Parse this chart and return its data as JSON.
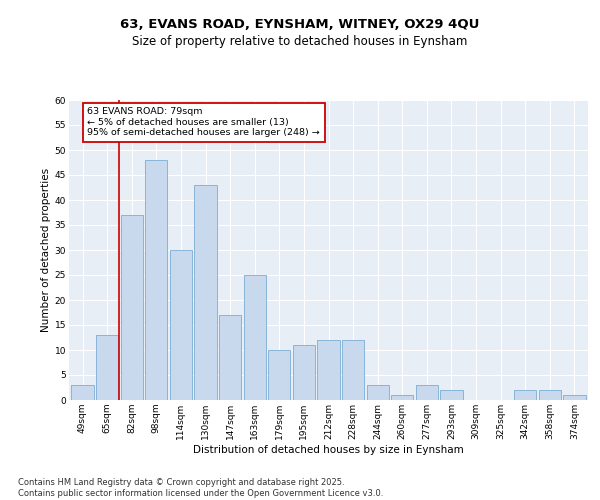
{
  "title1": "63, EVANS ROAD, EYNSHAM, WITNEY, OX29 4QU",
  "title2": "Size of property relative to detached houses in Eynsham",
  "xlabel": "Distribution of detached houses by size in Eynsham",
  "ylabel": "Number of detached properties",
  "categories": [
    "49sqm",
    "65sqm",
    "82sqm",
    "98sqm",
    "114sqm",
    "130sqm",
    "147sqm",
    "163sqm",
    "179sqm",
    "195sqm",
    "212sqm",
    "228sqm",
    "244sqm",
    "260sqm",
    "277sqm",
    "293sqm",
    "309sqm",
    "325sqm",
    "342sqm",
    "358sqm",
    "374sqm"
  ],
  "values": [
    3,
    13,
    37,
    48,
    30,
    43,
    17,
    25,
    10,
    11,
    12,
    12,
    3,
    1,
    3,
    2,
    0,
    0,
    2,
    2,
    1
  ],
  "bar_color": "#c9d9ed",
  "bar_edge_color": "#7aadd4",
  "bar_edge_width": 0.6,
  "red_line_x": 1.5,
  "annotation_text": "63 EVANS ROAD: 79sqm\n← 5% of detached houses are smaller (13)\n95% of semi-detached houses are larger (248) →",
  "annotation_box_color": "#ffffff",
  "annotation_border_color": "#cc0000",
  "ylim": [
    0,
    60
  ],
  "yticks": [
    0,
    5,
    10,
    15,
    20,
    25,
    30,
    35,
    40,
    45,
    50,
    55,
    60
  ],
  "background_color": "#e8eef6",
  "grid_color": "#ffffff",
  "footer": "Contains HM Land Registry data © Crown copyright and database right 2025.\nContains public sector information licensed under the Open Government Licence v3.0.",
  "title_fontsize": 9.5,
  "subtitle_fontsize": 8.5,
  "axis_label_fontsize": 7.5,
  "tick_fontsize": 6.5,
  "annotation_fontsize": 6.8,
  "footer_fontsize": 6.0
}
